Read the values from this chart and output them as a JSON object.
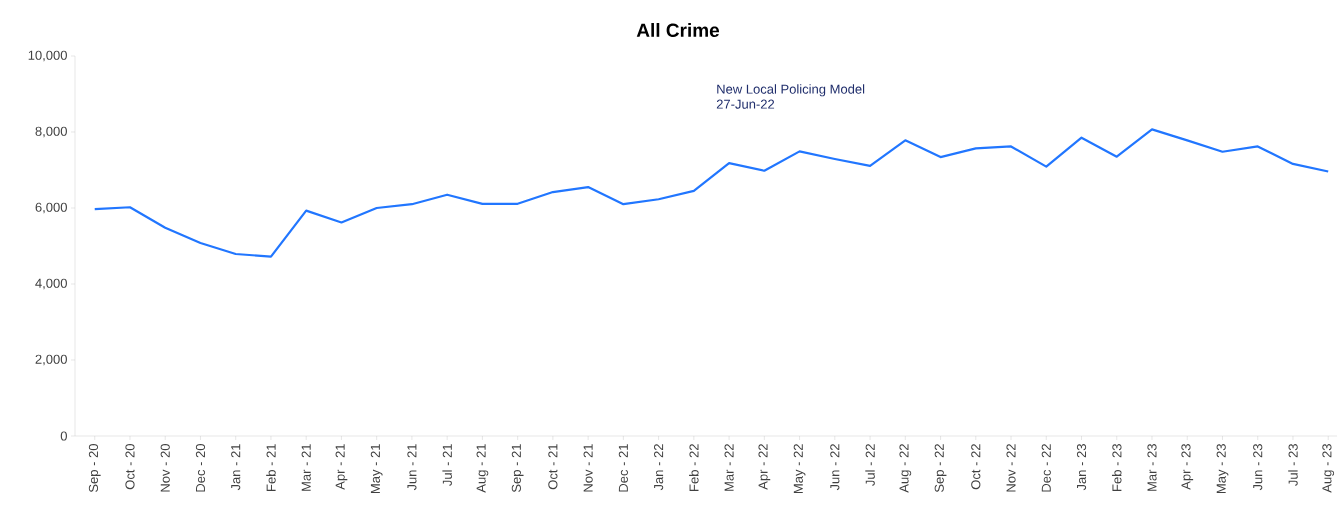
{
  "chart_data": {
    "type": "line",
    "title": "All Crime",
    "categories": [
      "Sep - 20",
      "Oct - 20",
      "Nov - 20",
      "Dec - 20",
      "Jan - 21",
      "Feb - 21",
      "Mar - 21",
      "Apr - 21",
      "May - 21",
      "Jun - 21",
      "Jul - 21",
      "Aug - 21",
      "Sep - 21",
      "Oct - 21",
      "Nov - 21",
      "Dec - 21",
      "Jan - 22",
      "Feb - 22",
      "Mar - 22",
      "Apr - 22",
      "May - 22",
      "Jun - 22",
      "Jul - 22",
      "Aug - 22",
      "Sep - 22",
      "Oct - 22",
      "Nov - 22",
      "Dec - 22",
      "Jan - 23",
      "Feb - 23",
      "Mar - 23",
      "Apr - 23",
      "May - 23",
      "Jun - 23",
      "Jul - 23",
      "Aug - 23"
    ],
    "series": [
      {
        "color": "#2176ff",
        "values": [
          5970,
          6020,
          5480,
          5080,
          4790,
          4720,
          5930,
          5620,
          6000,
          6100,
          6350,
          6110,
          6110,
          6420,
          6550,
          6100,
          6230,
          6450,
          7180,
          6980,
          7490,
          7290,
          7110,
          7780,
          7340,
          7570,
          7620,
          7090,
          7850,
          7350,
          8070,
          7780,
          7480,
          7620,
          7160,
          6960
        ]
      }
    ],
    "ylim": [
      0,
      10000
    ],
    "yticks": [
      {
        "value": 0,
        "label": "0"
      },
      {
        "value": 2000,
        "label": "2,000"
      },
      {
        "value": 4000,
        "label": "4,000"
      },
      {
        "value": 6000,
        "label": "6,000"
      },
      {
        "value": 8000,
        "label": "8,000"
      },
      {
        "value": 10000,
        "label": "10,000"
      }
    ],
    "annotations": [
      "New Local Policing Model\n27-Jun-22"
    ],
    "grid": false,
    "marker": "none",
    "line_style": "solid"
  }
}
